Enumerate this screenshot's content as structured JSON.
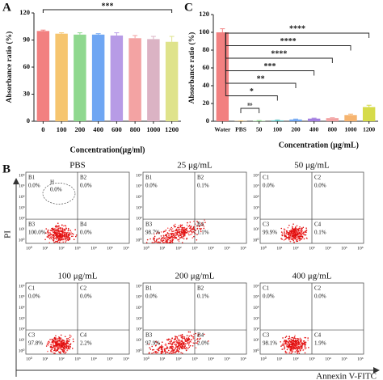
{
  "chart_data": [
    {
      "type": "bar",
      "panel": "A",
      "ylabel": "Absorbance ratio (%)",
      "xlabel": "Concentration(μg/ml)",
      "categories": [
        "0",
        "100",
        "200",
        "400",
        "600",
        "800",
        "1000",
        "1200"
      ],
      "values": [
        100,
        97,
        96,
        96,
        95,
        92,
        91,
        88
      ],
      "errors": [
        1,
        1,
        2,
        1,
        3,
        3,
        3,
        6
      ],
      "colors": [
        "#f28080",
        "#f6c56f",
        "#8fd88f",
        "#6fa6f3",
        "#b79be6",
        "#f3a3a3",
        "#dbb3c4",
        "#dfe38b"
      ],
      "ylim": [
        0,
        120
      ],
      "yticks": [
        0,
        30,
        60,
        90,
        120
      ],
      "annotations": [
        "***"
      ]
    },
    {
      "type": "bar",
      "panel": "C",
      "ylabel": "Absorbance ratio (%)",
      "xlabel": "Concentration (μg/mL)",
      "categories": [
        "Water",
        "PBS",
        "50",
        "100",
        "200",
        "400",
        "800",
        "1000",
        "1200"
      ],
      "values": [
        100,
        0.3,
        0.5,
        1,
        2,
        3,
        3.5,
        7,
        16
      ],
      "errors": [
        4,
        0.2,
        0.3,
        0.5,
        0.5,
        0.5,
        0.5,
        1,
        2
      ],
      "colors": [
        "#f28080",
        "#f6c56f",
        "#8fd88f",
        "#5fc6c6",
        "#6fa6f3",
        "#a37fe0",
        "#f3a3a3",
        "#f6b46f",
        "#d6db4a"
      ],
      "ylim": [
        0,
        120
      ],
      "yticks": [
        0,
        20,
        40,
        60,
        80,
        100,
        120
      ],
      "annotations": [
        "ns",
        "*",
        "**",
        "***",
        "****",
        "****",
        "****"
      ]
    }
  ],
  "flow_cytometry": {
    "panel": "B",
    "ylabel": "PI",
    "xlabel": "Annexin V-FITC",
    "ticks": [
      "10⁰",
      "10¹",
      "10²",
      "10³",
      "10⁴",
      "10⁵",
      "10⁶"
    ],
    "plots": [
      {
        "title": "PBS",
        "quadrants": [
          {
            "name": "B1",
            "value": "0.0%"
          },
          {
            "name": "B2",
            "value": "0.0%"
          },
          {
            "name": "B3",
            "value": "100.0%"
          },
          {
            "name": "B4",
            "value": "0.0%"
          }
        ],
        "gate": {
          "name": "H",
          "value": "0.0%"
        }
      },
      {
        "title": "25 μg/mL",
        "quadrants": [
          {
            "name": "B1",
            "value": "0.0%"
          },
          {
            "name": "B2",
            "value": "0.1%"
          },
          {
            "name": "B3",
            "value": "98.7%"
          },
          {
            "name": "B4",
            "value": "1.1%"
          }
        ]
      },
      {
        "title": "50 μg/mL",
        "quadrants": [
          {
            "name": "C1",
            "value": "0.0%"
          },
          {
            "name": "C2",
            "value": "0.0%"
          },
          {
            "name": "C3",
            "value": "99.9%"
          },
          {
            "name": "C4",
            "value": "0.1%"
          }
        ]
      },
      {
        "title": "100 μg/mL",
        "quadrants": [
          {
            "name": "C1",
            "value": "0.0%"
          },
          {
            "name": "C2",
            "value": "0.0%"
          },
          {
            "name": "C3",
            "value": "97.8%"
          },
          {
            "name": "C4",
            "value": "2.2%"
          }
        ]
      },
      {
        "title": "200 μg/mL",
        "quadrants": [
          {
            "name": "B1",
            "value": "0.0%"
          },
          {
            "name": "B2",
            "value": "0.1%"
          },
          {
            "name": "B3",
            "value": "97.9%"
          },
          {
            "name": "B4",
            "value": "2.0%"
          }
        ]
      },
      {
        "title": "400 μg/mL",
        "quadrants": [
          {
            "name": "C1",
            "value": "0.0%"
          },
          {
            "name": "C2",
            "value": "0.0%"
          },
          {
            "name": "C3",
            "value": "98.1%"
          },
          {
            "name": "C4",
            "value": "1.9%"
          }
        ]
      }
    ]
  }
}
